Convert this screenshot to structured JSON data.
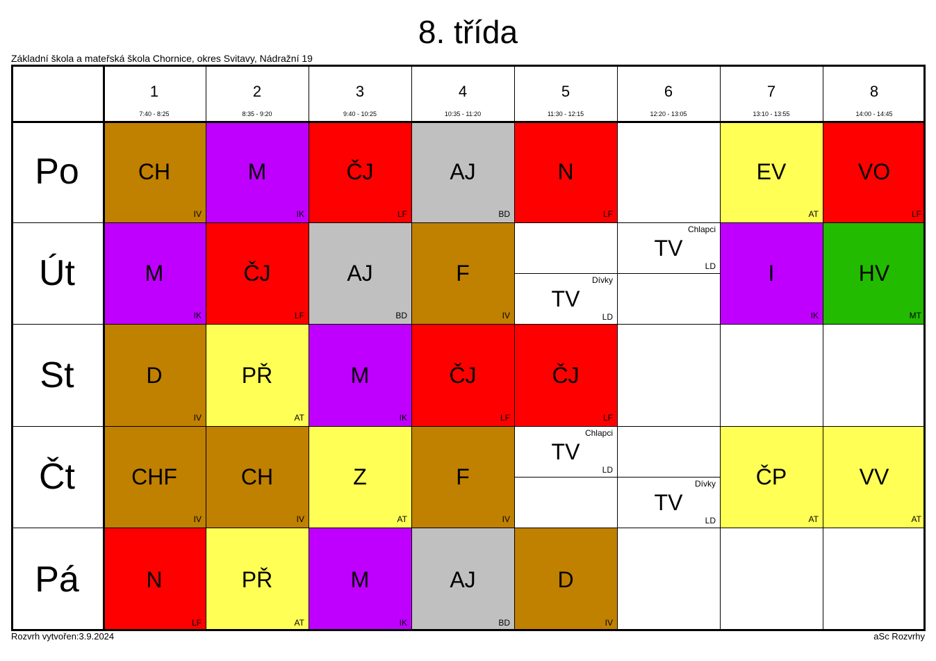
{
  "title": "8. třída",
  "school": "Základní škola a mateřská škola Chornice, okres Svitavy, Nádražní 19",
  "footer_left": "Rozvrh vytvořen:3.9.2024",
  "footer_right": "aSc Rozvrhy",
  "colors": {
    "brown": "#c08000",
    "purple": "#c000ff",
    "red": "#ff0000",
    "gray": "#c0c0c0",
    "yellow": "#ffff55",
    "green": "#22bb00",
    "white": "#ffffff"
  },
  "periods": [
    {
      "num": "1",
      "time": "7:40 - 8:25"
    },
    {
      "num": "2",
      "time": "8:35 - 9:20"
    },
    {
      "num": "3",
      "time": "9:40 - 10:25"
    },
    {
      "num": "4",
      "time": "10:35 - 11:20"
    },
    {
      "num": "5",
      "time": "11:30 - 12:15"
    },
    {
      "num": "6",
      "time": "12:20 - 13:05"
    },
    {
      "num": "7",
      "time": "13:10 - 13:55"
    },
    {
      "num": "8",
      "time": "14:00 - 14:45"
    }
  ],
  "days": [
    {
      "name": "Po",
      "lessons": [
        {
          "subject": "CH",
          "teacher": "IV",
          "color": "brown"
        },
        {
          "subject": "M",
          "teacher": "IK",
          "color": "purple"
        },
        {
          "subject": "ČJ",
          "teacher": "LF",
          "color": "red"
        },
        {
          "subject": "AJ",
          "teacher": "BD",
          "color": "gray"
        },
        {
          "subject": "N",
          "teacher": "LF",
          "color": "red"
        },
        null,
        {
          "subject": "EV",
          "teacher": "AT",
          "color": "yellow"
        },
        {
          "subject": "VO",
          "teacher": "LF",
          "color": "red"
        }
      ]
    },
    {
      "name": "Út",
      "lessons": [
        {
          "subject": "M",
          "teacher": "IK",
          "color": "purple"
        },
        {
          "subject": "ČJ",
          "teacher": "LF",
          "color": "red"
        },
        {
          "subject": "AJ",
          "teacher": "BD",
          "color": "gray"
        },
        {
          "subject": "F",
          "teacher": "IV",
          "color": "brown"
        },
        {
          "split": [
            null,
            {
              "subject": "TV",
              "teacher": "LD",
              "group": "Dívky"
            }
          ]
        },
        {
          "split": [
            {
              "subject": "TV",
              "teacher": "LD",
              "group": "Chlapci"
            },
            null
          ]
        },
        {
          "subject": "I",
          "teacher": "IK",
          "color": "purple"
        },
        {
          "subject": "HV",
          "teacher": "MT",
          "color": "green"
        }
      ]
    },
    {
      "name": "St",
      "lessons": [
        {
          "subject": "D",
          "teacher": "IV",
          "color": "brown"
        },
        {
          "subject": "PŘ",
          "teacher": "AT",
          "color": "yellow"
        },
        {
          "subject": "M",
          "teacher": "IK",
          "color": "purple"
        },
        {
          "subject": "ČJ",
          "teacher": "LF",
          "color": "red"
        },
        {
          "subject": "ČJ",
          "teacher": "LF",
          "color": "red"
        },
        null,
        null,
        null
      ]
    },
    {
      "name": "Čt",
      "lessons": [
        {
          "subject": "CHF",
          "teacher": "IV",
          "color": "brown"
        },
        {
          "subject": "CH",
          "teacher": "IV",
          "color": "brown"
        },
        {
          "subject": "Z",
          "teacher": "AT",
          "color": "yellow"
        },
        {
          "subject": "F",
          "teacher": "IV",
          "color": "brown"
        },
        {
          "split": [
            {
              "subject": "TV",
              "teacher": "LD",
              "group": "Chlapci"
            },
            null
          ]
        },
        {
          "split": [
            null,
            {
              "subject": "TV",
              "teacher": "LD",
              "group": "Dívky"
            }
          ]
        },
        {
          "subject": "ČP",
          "teacher": "AT",
          "color": "yellow"
        },
        {
          "subject": "VV",
          "teacher": "AT",
          "color": "yellow"
        }
      ]
    },
    {
      "name": "Pá",
      "lessons": [
        {
          "subject": "N",
          "teacher": "LF",
          "color": "red"
        },
        {
          "subject": "PŘ",
          "teacher": "AT",
          "color": "yellow"
        },
        {
          "subject": "M",
          "teacher": "IK",
          "color": "purple"
        },
        {
          "subject": "AJ",
          "teacher": "BD",
          "color": "gray"
        },
        {
          "subject": "D",
          "teacher": "IV",
          "color": "brown"
        },
        null,
        null,
        null
      ]
    }
  ]
}
